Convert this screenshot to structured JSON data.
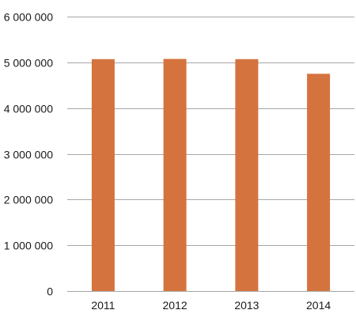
{
  "chart_data": {
    "type": "bar",
    "categories": [
      "2011",
      "2012",
      "2013",
      "2014"
    ],
    "values": [
      5070000,
      5075000,
      5070000,
      4750000
    ],
    "ylim": [
      0,
      6000000
    ],
    "yticks": [
      0,
      1000000,
      2000000,
      3000000,
      4000000,
      5000000,
      6000000
    ],
    "ytick_labels": [
      "0",
      "1 000 000",
      "2 000 000",
      "3 000 000",
      "4 000 000",
      "5 000 000",
      "6 000 000"
    ],
    "grid": true,
    "legend": "none",
    "bar_color": "#d5733e",
    "grid_color": "#a6a6a6"
  }
}
